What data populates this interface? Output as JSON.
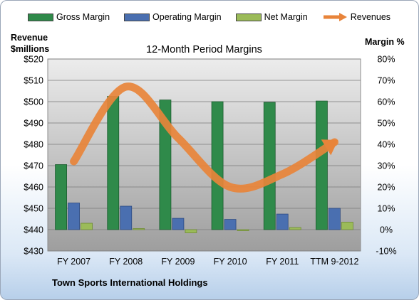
{
  "chart_data": {
    "type": "bar",
    "title": "12-Month Period Margins",
    "categories": [
      "FY 2007",
      "FY 2008",
      "FY 2009",
      "FY 2010",
      "FY 2011",
      "TTM 9-2012"
    ],
    "y_left": {
      "label_line1": "Revenue",
      "label_line2": "$millions",
      "range": [
        430,
        520
      ],
      "ticks": [
        "$430",
        "$440",
        "$450",
        "$460",
        "$470",
        "$480",
        "$490",
        "$500",
        "$510",
        "$520"
      ]
    },
    "y_right": {
      "label": "Margin %",
      "range": [
        -10,
        80
      ],
      "ticks": [
        "-10%",
        "0%",
        "10%",
        "20%",
        "30%",
        "40%",
        "50%",
        "60%",
        "70%",
        "80%"
      ]
    },
    "series": [
      {
        "name": "Gross Margin",
        "kind": "bar",
        "axis": "right",
        "color": "#2f8a4a",
        "values": [
          30.5,
          62.5,
          60.8,
          60.0,
          59.7,
          60.3
        ]
      },
      {
        "name": "Operating Margin",
        "kind": "bar",
        "axis": "right",
        "color": "#4a6fb0",
        "values": [
          12.5,
          11.0,
          5.3,
          4.8,
          7.3,
          10.0
        ]
      },
      {
        "name": "Net Margin",
        "kind": "bar",
        "axis": "right",
        "color": "#9bbb59",
        "values": [
          3.0,
          0.5,
          -1.5,
          -0.5,
          1.0,
          3.5
        ]
      },
      {
        "name": "Revenues",
        "kind": "line",
        "axis": "left",
        "color": "#e8843a",
        "values": [
          472,
          507,
          483,
          460,
          466,
          481
        ]
      }
    ],
    "grid": true,
    "legend_position": "top"
  },
  "footer": {
    "company": "Town Sports International Holdings"
  },
  "colors": {
    "plot_bg_top": "#ececec",
    "plot_bg_bottom": "#9e9e9e",
    "frame_border": "#9aa6b8"
  }
}
